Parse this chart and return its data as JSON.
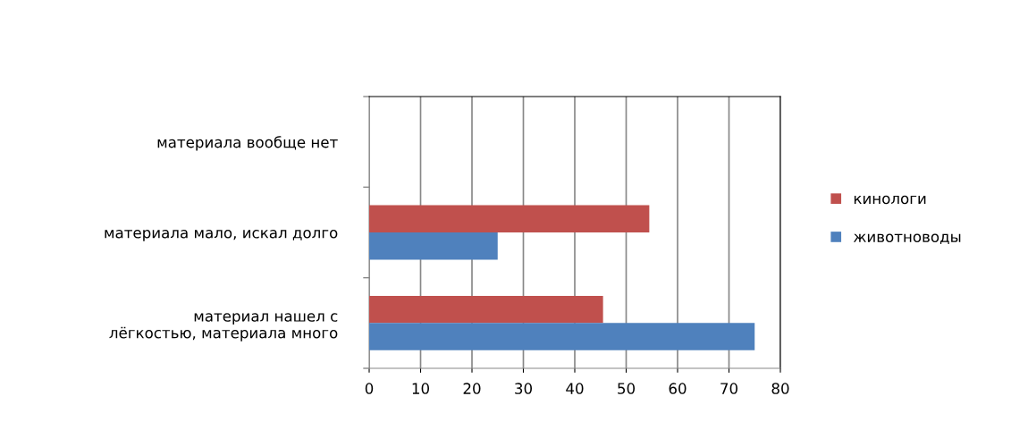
{
  "chart_data": {
    "type": "bar",
    "orientation": "horizontal",
    "categories": [
      "материала вообще нет",
      "материала мало, искал долго",
      "материал нашел с\nлёгкостью, материала много"
    ],
    "series": [
      {
        "name": "кинологи",
        "color": "#c0504d",
        "values": [
          null,
          54.5,
          45.5
        ]
      },
      {
        "name": "животноводы",
        "color": "#4f81bd",
        "values": [
          null,
          25,
          75
        ]
      }
    ],
    "xlim": [
      0,
      80
    ],
    "xticks": [
      0,
      10,
      20,
      30,
      40,
      50,
      60,
      70,
      80
    ],
    "grid": "x",
    "legend": "right"
  }
}
